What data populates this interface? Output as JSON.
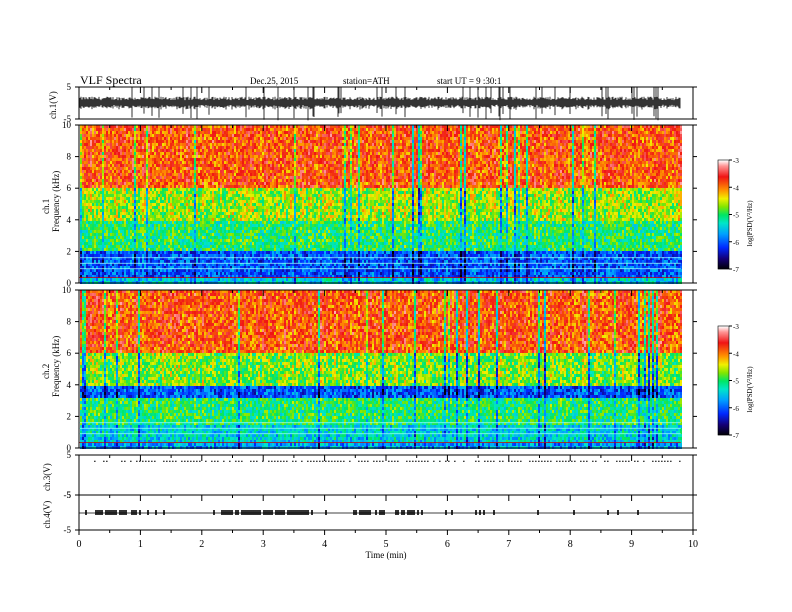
{
  "header": {
    "title": "VLF  Spectra",
    "date": "Dec.25, 2015",
    "station": "station=ATH",
    "start": "start  UT  =   9  :30:1"
  },
  "chart_data": [
    {
      "type": "line",
      "panel": "ch1-waveform",
      "ylabel": "ch.1(V)",
      "ylim": [
        -5,
        5
      ],
      "yticks": [
        "5",
        "-5"
      ],
      "xlim": [
        0,
        10
      ],
      "data_end_min": 9.8,
      "description_values": {
        "baseline_V": 0,
        "typical_amplitude_V": 1.8
      }
    },
    {
      "type": "heatmap",
      "panel": "ch1-spectrogram",
      "ylabel": "Frequency  (kHz)",
      "channel_label": "ch.1",
      "ylim": [
        0,
        10
      ],
      "yticks": [
        "0",
        "2",
        "4",
        "6",
        "8",
        "10"
      ],
      "xlim": [
        0,
        10
      ],
      "data_end_min": 9.8,
      "bands_kHz": [
        {
          "from": 0,
          "to": 0.4,
          "level": -5.5
        },
        {
          "from": 0.4,
          "to": 2.0,
          "level": -6.0
        },
        {
          "from": 2.0,
          "to": 4.0,
          "level": -5.0
        },
        {
          "from": 4.0,
          "to": 6.0,
          "level": -4.6
        },
        {
          "from": 6.0,
          "to": 10.0,
          "level": -3.8
        }
      ],
      "colorbar": {
        "label": "log(PSD(V²/Hz)",
        "range": [
          -7,
          -3
        ],
        "ticks": [
          "-3",
          "-4",
          "-5",
          "-6",
          "-7"
        ]
      }
    },
    {
      "type": "heatmap",
      "panel": "ch2-spectrogram",
      "ylabel": "Frequency  (kHz)",
      "channel_label": "ch.2",
      "ylim": [
        0,
        10
      ],
      "yticks": [
        "0",
        "2",
        "4",
        "6",
        "8",
        "10"
      ],
      "xlim": [
        0,
        10
      ],
      "data_end_min": 9.8,
      "bands_kHz": [
        {
          "from": 0,
          "to": 0.4,
          "level": -5.7
        },
        {
          "from": 0.4,
          "to": 1.6,
          "level": -5.4
        },
        {
          "from": 1.6,
          "to": 3.2,
          "level": -5.0
        },
        {
          "from": 3.2,
          "to": 4.0,
          "level": -6.0
        },
        {
          "from": 4.0,
          "to": 6.0,
          "level": -4.7
        },
        {
          "from": 6.0,
          "to": 10.0,
          "level": -3.8
        }
      ],
      "colorbar": {
        "label": "log(PSD(V²/Hz)",
        "range": [
          -7,
          -3
        ],
        "ticks": [
          "-3",
          "-4",
          "-5",
          "-6",
          "-7"
        ]
      }
    },
    {
      "type": "line",
      "panel": "ch3-waveform",
      "ylabel": "ch.3(V)",
      "ylim": [
        -5,
        5
      ],
      "yticks": [
        "5",
        "-5"
      ],
      "xlim": [
        0,
        10
      ],
      "description_values": {
        "baseline_V": 0
      }
    },
    {
      "type": "line",
      "panel": "ch4-waveform",
      "ylabel": "ch.4(V)",
      "ylim": [
        -5,
        5
      ],
      "yticks": [
        "5",
        "-5"
      ],
      "xlim": [
        0,
        10
      ],
      "description_values": {
        "baseline_V": 0
      },
      "xlabel": "Time  (min)",
      "xticks": [
        "0",
        "1",
        "2",
        "3",
        "4",
        "5",
        "6",
        "7",
        "8",
        "9",
        "10"
      ]
    }
  ]
}
